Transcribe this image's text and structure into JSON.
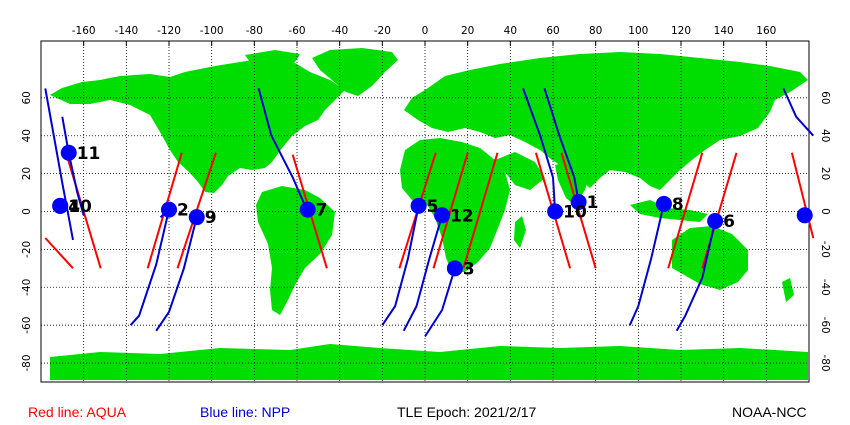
{
  "map": {
    "colors": {
      "land": "#00dd00",
      "ocean": "#ffffff",
      "aqua": "#ff0000",
      "npp": "#0000cc",
      "marker": "#0000ff",
      "grid": "#000000"
    },
    "lon_ticks": [
      -160,
      -140,
      -120,
      -100,
      -80,
      -60,
      -40,
      -20,
      0,
      20,
      40,
      60,
      80,
      100,
      120,
      140,
      160
    ],
    "lat_ticks": [
      60,
      40,
      20,
      0,
      -20,
      -40,
      -60,
      -80
    ],
    "lat_label_strings": [
      "60",
      "40",
      "20",
      "0",
      "-20",
      "-40",
      "-60",
      "-80"
    ],
    "lon_label_strings": [
      "-160",
      "-140",
      "-120",
      "-100",
      "-80",
      "-60",
      "-40",
      "-20",
      "0",
      "20",
      "40",
      "60",
      "80",
      "100",
      "120",
      "140",
      "160"
    ]
  },
  "passes": [
    {
      "label": "1",
      "lon": 72,
      "lat": 5
    },
    {
      "label": "2",
      "lon": -120,
      "lat": 1
    },
    {
      "label": "3",
      "lon": 14,
      "lat": -30
    },
    {
      "label": "4",
      "lon": -171,
      "lat": 3
    },
    {
      "label": "5",
      "lon": -3,
      "lat": 3
    },
    {
      "label": "6",
      "lon": 136,
      "lat": -5
    },
    {
      "label": "7",
      "lon": -55,
      "lat": 1
    },
    {
      "label": "8",
      "lon": 112,
      "lat": 4
    },
    {
      "label": "9",
      "lon": -107,
      "lat": -3
    },
    {
      "label": "10",
      "lon": -171,
      "lat": 3
    },
    {
      "label": "10",
      "lon": 61,
      "lat": 0
    },
    {
      "label": "11",
      "lon": -167,
      "lat": 31
    },
    {
      "label": "12",
      "lon": 8,
      "lat": -2
    },
    {
      "label": "",
      "lon": 178,
      "lat": -2
    }
  ],
  "aqua_tracks": [
    [
      [
        -178,
        -14
      ],
      [
        -165,
        -30
      ]
    ],
    [
      [
        -168,
        30
      ],
      [
        -152,
        -30
      ]
    ],
    [
      [
        -114,
        31
      ],
      [
        -130,
        -30
      ]
    ],
    [
      [
        -98,
        31
      ],
      [
        -116,
        -30
      ]
    ],
    [
      [
        -62,
        30
      ],
      [
        -46,
        -30
      ]
    ],
    [
      [
        5,
        31
      ],
      [
        -12,
        -30
      ]
    ],
    [
      [
        20,
        31
      ],
      [
        4,
        -30
      ]
    ],
    [
      [
        34,
        31
      ],
      [
        18,
        -30
      ]
    ],
    [
      [
        64,
        31
      ],
      [
        80,
        -30
      ]
    ],
    [
      [
        52,
        31
      ],
      [
        68,
        -30
      ]
    ],
    [
      [
        130,
        31
      ],
      [
        114,
        -30
      ]
    ],
    [
      [
        146,
        31
      ],
      [
        130,
        -30
      ]
    ],
    [
      [
        172,
        31
      ],
      [
        182,
        -14
      ]
    ]
  ],
  "npp_tracks": [
    [
      [
        -178,
        65
      ],
      [
        -174,
        40
      ],
      [
        -170,
        15
      ],
      [
        -168,
        3
      ],
      [
        -165,
        -15
      ]
    ],
    [
      [
        -170,
        50
      ],
      [
        -167,
        31
      ],
      [
        -163,
        10
      ],
      [
        -160,
        -2
      ]
    ],
    [
      [
        -124,
        -3
      ],
      [
        -120,
        1
      ],
      [
        -126,
        -28
      ],
      [
        -134,
        -55
      ],
      [
        -138,
        -60
      ]
    ],
    [
      [
        -107,
        -3
      ],
      [
        -113,
        -30
      ],
      [
        -120,
        -53
      ],
      [
        -126,
        -63
      ]
    ],
    [
      [
        -78,
        65
      ],
      [
        -72,
        40
      ],
      [
        -62,
        18
      ],
      [
        -57,
        5
      ],
      [
        -55,
        1
      ]
    ],
    [
      [
        -3,
        3
      ],
      [
        -8,
        -25
      ],
      [
        -14,
        -50
      ],
      [
        -20,
        -60
      ]
    ],
    [
      [
        8,
        -2
      ],
      [
        2,
        -25
      ],
      [
        -4,
        -50
      ],
      [
        -10,
        -63
      ]
    ],
    [
      [
        14,
        -30
      ],
      [
        8,
        -52
      ],
      [
        0,
        -66
      ]
    ],
    [
      [
        46,
        65
      ],
      [
        54,
        40
      ],
      [
        60,
        18
      ],
      [
        61,
        0
      ]
    ],
    [
      [
        56,
        65
      ],
      [
        63,
        40
      ],
      [
        70,
        18
      ],
      [
        72,
        5
      ]
    ],
    [
      [
        112,
        4
      ],
      [
        106,
        -25
      ],
      [
        100,
        -50
      ],
      [
        96,
        -60
      ]
    ],
    [
      [
        136,
        -5
      ],
      [
        130,
        -35
      ],
      [
        122,
        -55
      ],
      [
        118,
        -63
      ]
    ],
    [
      [
        168,
        65
      ],
      [
        174,
        50
      ],
      [
        182,
        40
      ]
    ]
  ],
  "legend": {
    "aqua": "Red line: AQUA",
    "npp": "Blue line: NPP",
    "epoch": "TLE Epoch: 2021/2/17",
    "source": "NOAA-NCC"
  }
}
